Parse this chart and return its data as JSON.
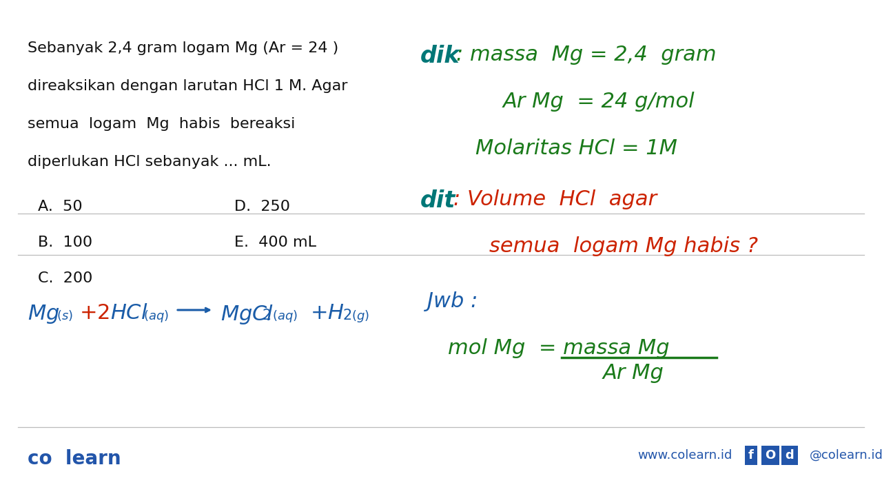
{
  "bg_color": "#ffffff",
  "line_color": "#bbbbbb",
  "green_color": "#1a7a1a",
  "blue_color": "#1a5ca8",
  "red_color": "#cc2200",
  "question_color": "#111111",
  "footer_color": "#2255aa",
  "q_lines": [
    "Sebanyak 2,4 gram logam Mg (Ar = 24 )",
    "direaksikan dengan larutan HCl 1 M. Agar",
    "semua  logam  Mg  habis  bereaksi",
    "diperlukan HCl sebanyak ... mL."
  ],
  "choice_col1": [
    "A.  50",
    "B.  100",
    "C.  200"
  ],
  "choice_col2": [
    "D.  250",
    "E.  400 mL",
    ""
  ],
  "dik_label": "dik",
  "dik_content": [
    " : massa  Mg = 2,4  gram",
    "Ar Mg  = 24 g/mol",
    "Molaritas HCl = 1M"
  ],
  "dit_label": "dit",
  "dit_content": [
    " : Volume  HCl  agar",
    "semua  logam Mg habis ?"
  ],
  "jwb_label": "Jwb :",
  "jwb_numerator": "mol Mg = massa Mg",
  "jwb_denominator": "Ar Mg"
}
